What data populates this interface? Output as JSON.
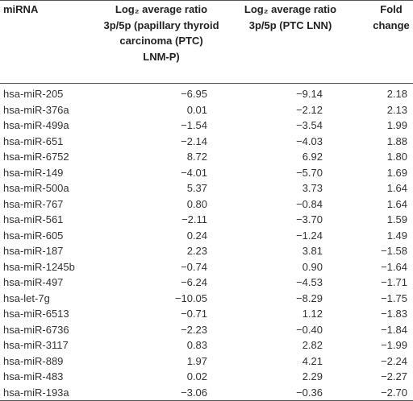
{
  "table": {
    "header": [
      [
        "miRNA"
      ],
      [
        "Log₂ average ratio",
        "3p/5p (papillary thyroid",
        "carcinoma (PTC)",
        "LNM-P)"
      ],
      [
        "Log₂ average ratio",
        "3p/5p (PTC LNN)"
      ],
      [
        "Fold",
        "change"
      ]
    ],
    "rows": [
      [
        "hsa-miR-205",
        "−6.95",
        "−9.14",
        "2.18"
      ],
      [
        "hsa-miR-376a",
        "0.01",
        "−2.12",
        "2.13"
      ],
      [
        "hsa-miR-499a",
        "−1.54",
        "−3.54",
        "1.99"
      ],
      [
        "hsa-miR-651",
        "−2.14",
        "−4.03",
        "1.88"
      ],
      [
        "hsa-miR-6752",
        "8.72",
        "6.92",
        "1.80"
      ],
      [
        "hsa-miR-149",
        "−4.01",
        "−5.70",
        "1.69"
      ],
      [
        "hsa-miR-500a",
        "5.37",
        "3.73",
        "1.64"
      ],
      [
        "hsa-miR-767",
        "0.80",
        "−0.84",
        "1.64"
      ],
      [
        "hsa-miR-561",
        "−2.11",
        "−3.70",
        "1.59"
      ],
      [
        "hsa-miR-605",
        "0.24",
        "−1.24",
        "1.49"
      ],
      [
        "hsa-miR-187",
        "2.23",
        "3.81",
        "−1.58"
      ],
      [
        "hsa-miR-1245b",
        "−0.74",
        "0.90",
        "−1.64"
      ],
      [
        "hsa-miR-497",
        "−6.24",
        "−4.53",
        "−1.71"
      ],
      [
        "hsa-let-7g",
        "−10.05",
        "−8.29",
        "−1.75"
      ],
      [
        "hsa-miR-6513",
        "−0.71",
        "1.12",
        "−1.83"
      ],
      [
        "hsa-miR-6736",
        "−2.23",
        "−0.40",
        "−1.84"
      ],
      [
        "hsa-miR-3117",
        "0.83",
        "2.82",
        "−1.99"
      ],
      [
        "hsa-miR-889",
        "1.97",
        "4.21",
        "−2.24"
      ],
      [
        "hsa-miR-483",
        "0.02",
        "2.29",
        "−2.27"
      ],
      [
        "hsa-miR-193a",
        "−3.06",
        "−0.36",
        "−2.70"
      ]
    ]
  }
}
